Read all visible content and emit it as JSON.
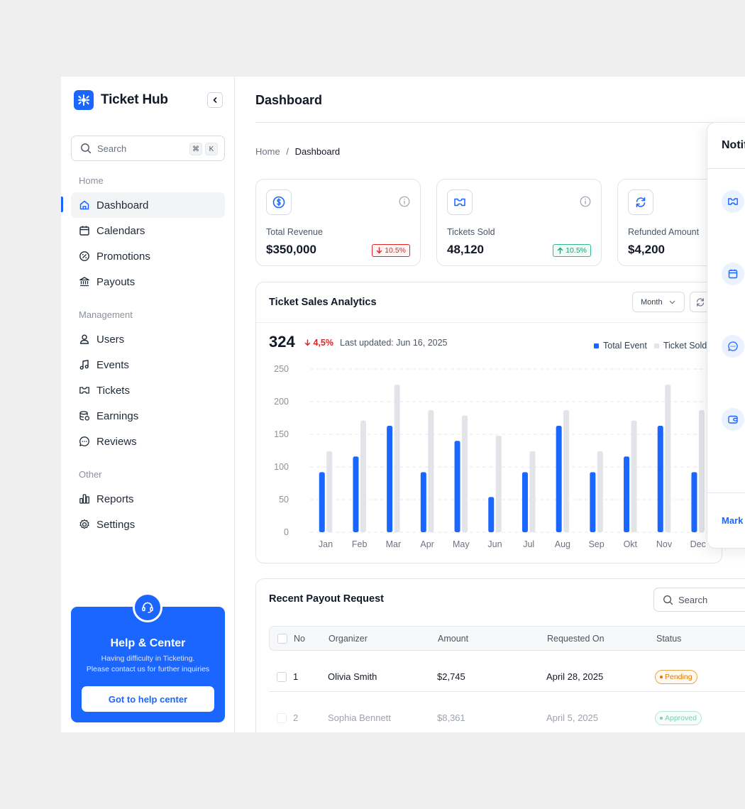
{
  "app": {
    "name": "Ticket Hub"
  },
  "sidebar": {
    "search_placeholder": "Search",
    "shortcut_keys": [
      "⌘",
      "K"
    ],
    "sections": [
      {
        "label": "Home",
        "items": [
          {
            "label": "Dashboard",
            "icon": "home-icon",
            "active": true
          },
          {
            "label": "Calendars",
            "icon": "calendar-icon"
          },
          {
            "label": "Promotions",
            "icon": "percent-badge-icon"
          },
          {
            "label": "Payouts",
            "icon": "bank-icon"
          }
        ]
      },
      {
        "label": "Management",
        "items": [
          {
            "label": "Users",
            "icon": "user-icon"
          },
          {
            "label": "Events",
            "icon": "music-note-icon"
          },
          {
            "label": "Tickets",
            "icon": "ticket-icon"
          },
          {
            "label": "Earnings",
            "icon": "coins-icon"
          },
          {
            "label": "Reviews",
            "icon": "chat-icon"
          }
        ]
      },
      {
        "label": "Other",
        "items": [
          {
            "label": "Reports",
            "icon": "bar-chart-icon"
          },
          {
            "label": "Settings",
            "icon": "gear-icon"
          }
        ]
      }
    ],
    "help": {
      "title": "Help & Center",
      "line1": "Having difficulty in Ticketing.",
      "line2": "Please contact us for further inquiries",
      "button": "Got to help center"
    }
  },
  "header": {
    "title": "Dashboard"
  },
  "breadcrumb": {
    "root": "Home",
    "separator": "/",
    "current": "Dashboard"
  },
  "stats": [
    {
      "label": "Total Revenue",
      "value": "$350,000",
      "badge": "10.5%",
      "trend": "down",
      "icon": "dollar-coin-icon"
    },
    {
      "label": "Tickets Sold",
      "value": "48,120",
      "badge": "10.5%",
      "trend": "up",
      "icon": "ticket-icon"
    },
    {
      "label": "Refunded Amount",
      "value": "$4,200",
      "icon": "refresh-icon"
    }
  ],
  "analytics": {
    "title": "Ticket Sales Analytics",
    "period": "Month",
    "total": "324",
    "delta": "4,5%",
    "updated": "Last updated: Jun 16, 2025",
    "legend": [
      "Total Event",
      "Ticket Sold"
    ]
  },
  "chart_data": {
    "type": "bar",
    "categories": [
      "Jan",
      "Feb",
      "Mar",
      "Apr",
      "May",
      "Jun",
      "Jul",
      "Aug",
      "Sep",
      "Okt",
      "Nov",
      "Dec"
    ],
    "series": [
      {
        "name": "Total Event",
        "color": "#1a66ff",
        "values": [
          92,
          116,
          163,
          92,
          140,
          54,
          92,
          163,
          92,
          116,
          163,
          92
        ]
      },
      {
        "name": "Ticket Sold",
        "color": "#e2e4e9",
        "values": [
          124,
          171,
          226,
          187,
          179,
          148,
          124,
          187,
          124,
          171,
          226,
          187
        ]
      }
    ],
    "y_ticks": [
      0,
      50,
      100,
      150,
      200,
      250
    ],
    "ylim": [
      0,
      250
    ],
    "grid": true,
    "legend_position": "top-right"
  },
  "notifications": {
    "title": "Notifications",
    "icons": [
      "ticket-icon",
      "calendar-icon",
      "chat-icon",
      "wallet-icon"
    ],
    "footer": "Mark all as read"
  },
  "payouts": {
    "title": "Recent Payout Request",
    "search_placeholder": "Search",
    "columns": [
      "No",
      "Organizer",
      "Amount",
      "Requested On",
      "Status"
    ],
    "rows": [
      {
        "no": "1",
        "organizer": "Olivia Smith",
        "amount": "$2,745",
        "date": "April 28, 2025",
        "status": "Pending"
      },
      {
        "no": "2",
        "organizer": "Sophia Bennett",
        "amount": "$8,361",
        "date": "April 5, 2025",
        "status": "Approved"
      }
    ]
  }
}
